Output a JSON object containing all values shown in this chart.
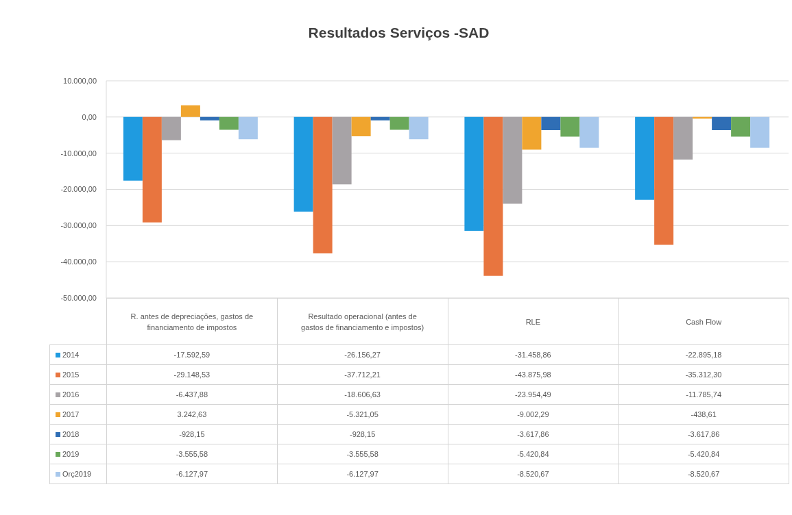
{
  "chart_data": {
    "type": "bar",
    "title": "Resultados Serviços -SAD",
    "categories": [
      "R. antes de depreciações, gastos de financiamento de impostos",
      "Resultado operacional (antes de gastos de financiamento e impostos)",
      "RLE",
      "Cash Flow"
    ],
    "series": [
      {
        "name": "2014",
        "color": "#1f9be0",
        "values": [
          -17592.59,
          -26156.27,
          -31458.86,
          -22895.18
        ],
        "value_labels": [
          "-17.592,59",
          "-26.156,27",
          "-31.458,86",
          "-22.895,18"
        ]
      },
      {
        "name": "2015",
        "color": "#e8753f",
        "values": [
          -29148.53,
          -37712.21,
          -43875.98,
          -35312.3
        ],
        "value_labels": [
          "-29.148,53",
          "-37.712,21",
          "-43.875,98",
          "-35.312,30"
        ]
      },
      {
        "name": "2016",
        "color": "#a7a3a6",
        "values": [
          -6437.88,
          -18606.63,
          -23954.49,
          -11785.74
        ],
        "value_labels": [
          "-6.437,88",
          "-18.606,63",
          "-23.954,49",
          "-11.785,74"
        ]
      },
      {
        "name": "2017",
        "color": "#f0a52e",
        "values": [
          3242.63,
          -5321.05,
          -9002.29,
          -438.61
        ],
        "value_labels": [
          "3.242,63",
          "-5.321,05",
          "-9.002,29",
          "-438,61"
        ]
      },
      {
        "name": "2018",
        "color": "#2f6eb5",
        "values": [
          -928.15,
          -928.15,
          -3617.86,
          -3617.86
        ],
        "value_labels": [
          "-928,15",
          "-928,15",
          "-3.617,86",
          "-3.617,86"
        ]
      },
      {
        "name": "2019",
        "color": "#6aa85a",
        "values": [
          -3555.58,
          -3555.58,
          -5420.84,
          -5420.84
        ],
        "value_labels": [
          "-3.555,58",
          "-3.555,58",
          "-5.420,84",
          "-5.420,84"
        ]
      },
      {
        "name": "Orç2019",
        "color": "#a8c8ec",
        "values": [
          -6127.97,
          -6127.97,
          -8520.67,
          -8520.67
        ],
        "value_labels": [
          "-6.127,97",
          "-6.127,97",
          "-8.520,67",
          "-8.520,67"
        ]
      }
    ],
    "ylim": [
      -50000,
      10000
    ],
    "yticks": [
      {
        "value": -50000,
        "label": "-50.000,00"
      },
      {
        "value": -40000,
        "label": "-40.000,00"
      },
      {
        "value": -30000,
        "label": "-30.000,00"
      },
      {
        "value": -20000,
        "label": "-20.000,00"
      },
      {
        "value": -10000,
        "label": "-10.000,00"
      },
      {
        "value": 0,
        "label": "0,00"
      },
      {
        "value": 10000,
        "label": "10.000,00"
      }
    ],
    "grid": "y",
    "legend": "bottom"
  }
}
